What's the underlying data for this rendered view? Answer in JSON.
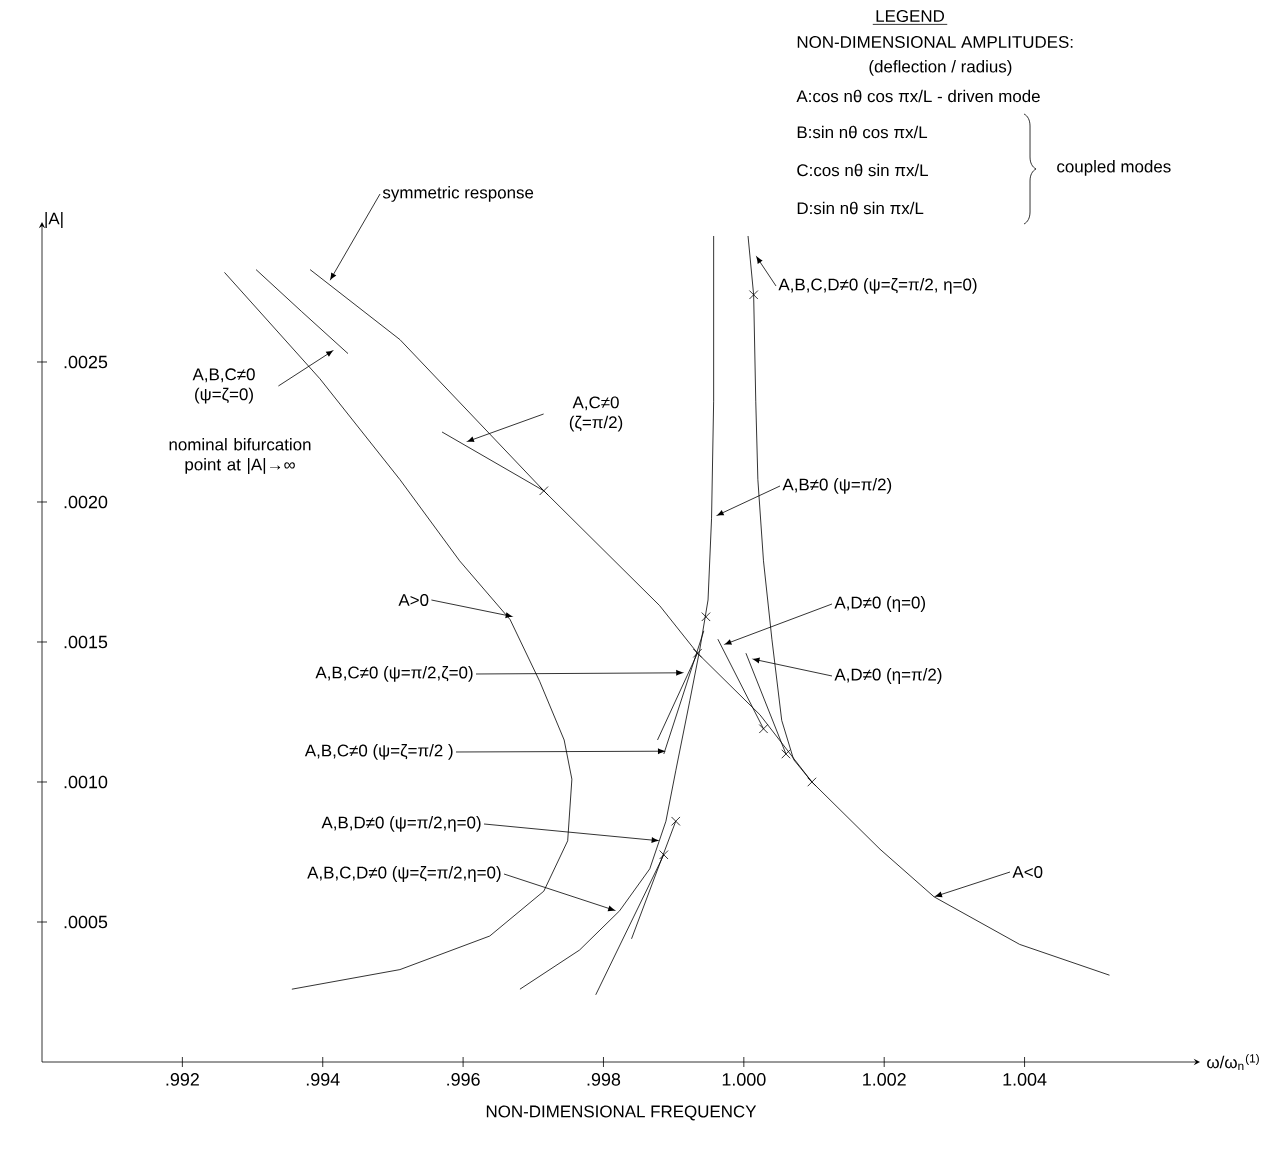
{
  "chart_data": {
    "type": "line",
    "xlabel": "NON-DIMENSIONAL FREQUENCY",
    "ylabel": "|A|",
    "xlim": [
      0.99,
      1.0065
    ],
    "ylim": [
      0,
      0.003
    ],
    "xticks": [
      {
        "value": 0.992,
        "label": ".992"
      },
      {
        "value": 0.994,
        "label": ".994"
      },
      {
        "value": 0.996,
        "label": ".996"
      },
      {
        "value": 0.998,
        "label": ".998"
      },
      {
        "value": 1.0,
        "label": "1.000"
      },
      {
        "value": 1.002,
        "label": "1.002"
      },
      {
        "value": 1.004,
        "label": "1.004"
      }
    ],
    "yticks": [
      {
        "value": 0.0005,
        "label": ".0005"
      },
      {
        "value": 0.001,
        "label": ".0010"
      },
      {
        "value": 0.0015,
        "label": ".0015"
      },
      {
        "value": 0.002,
        "label": ".0020"
      },
      {
        "value": 0.0025,
        "label": ".0025"
      }
    ],
    "series": [
      {
        "color": "#000000",
        "x": [
          0.9926,
          0.99396,
          0.9951,
          0.99595,
          0.99667,
          0.99709,
          0.99744,
          0.99755,
          0.99749,
          0.99715,
          0.99638,
          0.9951,
          0.99356
        ],
        "values": [
          0.00282,
          0.00244,
          0.00208,
          0.00179,
          0.00158,
          0.00136,
          0.00115,
          0.00101,
          0.00079,
          0.00061,
          0.00045,
          0.00033,
          0.00026
        ]
      },
      {
        "color": "#000000",
        "x": [
          0.99305,
          0.9937,
          0.99436
        ],
        "values": [
          0.00283,
          0.00268,
          0.00253
        ]
      },
      {
        "color": "#000000",
        "x": [
          0.99382,
          0.9951,
          0.99715,
          0.9988,
          0.99934,
          1.00023,
          1.00097,
          1.00194,
          1.00271,
          1.00393,
          1.00521
        ],
        "values": [
          0.00283,
          0.00258,
          0.00204,
          0.00163,
          0.00146,
          0.00124,
          0.001,
          0.00076,
          0.00059,
          0.00042,
          0.00031
        ]
      },
      {
        "color": "#000000",
        "x": [
          0.9957,
          0.99715
        ],
        "values": [
          0.00225,
          0.00204
        ]
      },
      {
        "color": "#000000",
        "x": [
          0.99957,
          0.99957,
          0.99954,
          0.99949,
          0.99937,
          0.99923,
          0.99903,
          0.99889,
          0.99866,
          0.99823,
          0.99766,
          0.99681
        ],
        "values": [
          0.00295,
          0.00236,
          0.00194,
          0.00165,
          0.00147,
          0.00129,
          0.00104,
          0.00086,
          0.00069,
          0.00054,
          0.0004,
          0.00026
        ]
      },
      {
        "color": "#000000",
        "x": [
          1.00006,
          1.00014,
          1.00017,
          1.0002,
          1.00028,
          1.0004,
          1.00054,
          1.00071,
          1.00097
        ],
        "values": [
          0.00295,
          0.00274,
          0.00236,
          0.00208,
          0.00179,
          0.00151,
          0.00122,
          0.00108,
          0.001
        ]
      },
      {
        "color": "#000000",
        "x": [
          0.99963,
          1.00028
        ],
        "values": [
          0.00151,
          0.00119
        ]
      },
      {
        "color": "#000000",
        "x": [
          1.00003,
          1.0006
        ],
        "values": [
          0.00146,
          0.0011
        ]
      },
      {
        "color": "#000000",
        "x": [
          0.99877,
          0.99934
        ],
        "values": [
          0.00115,
          0.00146
        ]
      },
      {
        "color": "#000000",
        "x": [
          0.99886,
          0.99943
        ],
        "values": [
          0.0011,
          0.00154
        ]
      },
      {
        "color": "#000000",
        "x": [
          0.9984,
          0.99903
        ],
        "values": [
          0.00044,
          0.00086
        ]
      },
      {
        "color": "#000000",
        "x": [
          0.99789,
          0.99886
        ],
        "values": [
          0.00024,
          0.00074
        ]
      },
      {
        "type": "scatter",
        "color": "#000000",
        "marker": "cross",
        "x": [
          0.99715,
          0.99946,
          0.99934,
          0.99903,
          0.99886,
          1.00028,
          1.0006,
          1.00097,
          1.00014
        ],
        "values": [
          0.00204,
          0.00159,
          0.00146,
          0.00086,
          0.00074,
          0.00119,
          0.0011,
          0.001,
          0.00274
        ]
      }
    ],
    "annotations": [
      {
        "text": "symmetric response",
        "x": 0.9941,
        "y": 0.00279
      },
      "A,B,C≠0 (ψ=ζ=0)",
      "A,C≠0 (ζ=π/2)",
      {
        "text": "A>0",
        "x": 0.99672,
        "y": 0.00159
      },
      {
        "text": "A,B,C≠0 (ψ=π/2,ζ=0)",
        "x": 0.99915,
        "y": 0.00139
      },
      {
        "text": "A,B,C≠0 (ψ=ζ=π/2 )",
        "x": 0.99889,
        "y": 0.00111
      },
      {
        "text": "A,B,D≠0 (ψ=π/2,η=0)",
        "x": 0.9988,
        "y": 0.00079
      },
      {
        "text": "A,B,C,D≠0 (ψ=ζ=π/2,η=0)",
        "x": 0.99818,
        "y": 0.00054
      },
      {
        "text": "A,B,C,D≠0  (ψ=ζ=π/2, η=0)",
        "x": 1.00017,
        "y": 0.00288
      },
      {
        "text": "A,B≠0 (ψ=π/2)",
        "x": 0.9996,
        "y": 0.00195
      },
      {
        "text": "A,D≠0 (η=0)",
        "x": 0.99971,
        "y": 0.00149
      },
      {
        "text": "A,D≠0 (η=π/2)",
        "x": 1.00011,
        "y": 0.00144
      },
      {
        "text": "A<0",
        "x": 1.00271,
        "y": 0.00059
      },
      "nominal bifurcation point at |A|→∞",
      "LEGEND",
      "NON-DIMENSIONAL AMPLITUDES:",
      "(deflection / radius)",
      "A:cos nθ cos πx/L - driven mode",
      "B:sin nθ cos πx/L",
      "C:cos nθ sin πx/L",
      "D:sin nθ sin πx/L",
      "coupled modes",
      "ω/ω$_{n}$$^{(1)}$"
    ]
  }
}
